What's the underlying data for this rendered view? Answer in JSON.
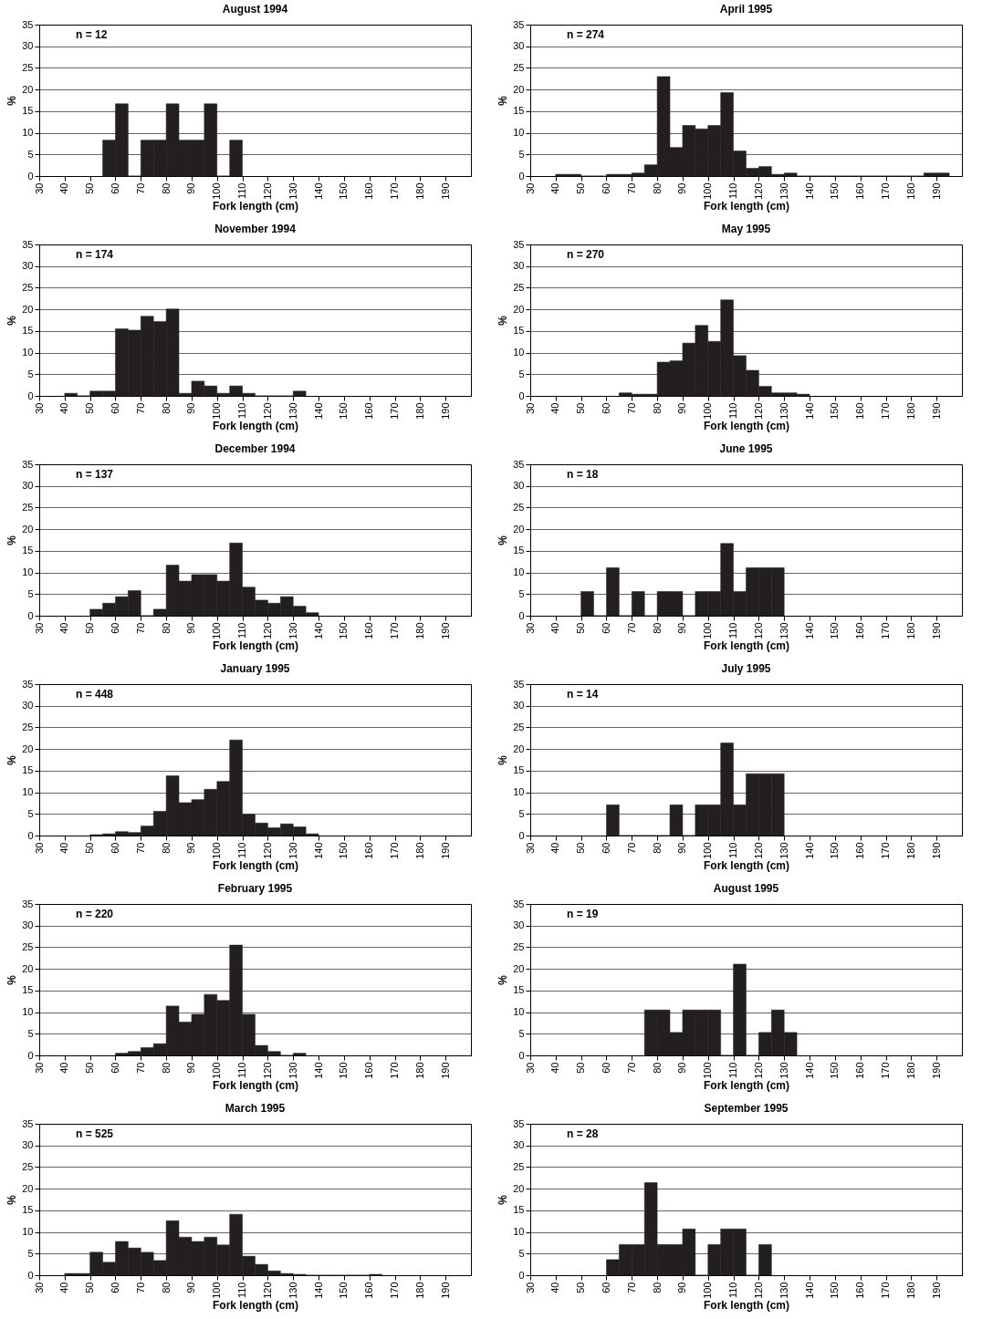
{
  "chart_data": [
    {
      "type": "histogram",
      "title": "August 1994",
      "xlabel": "Fork length (cm)",
      "ylabel": "%",
      "annotations": [
        "n = 12"
      ],
      "color": "#231f20",
      "grid": "y",
      "xlim": [
        30,
        200
      ],
      "xticks": [
        30,
        40,
        50,
        60,
        70,
        80,
        90,
        100,
        110,
        120,
        130,
        140,
        150,
        160,
        170,
        180,
        190
      ],
      "ylim": [
        0,
        35
      ],
      "yticks": [
        0,
        5,
        10,
        15,
        20,
        25,
        30,
        35
      ],
      "bins": [
        55,
        60,
        65,
        70,
        75,
        80,
        85,
        90,
        95,
        100,
        105,
        110
      ],
      "values": [
        8.3,
        16.7,
        0,
        8.3,
        8.3,
        16.7,
        8.3,
        8.3,
        16.7,
        0,
        8.3
      ]
    },
    {
      "type": "histogram",
      "title": "April 1995",
      "xlabel": "Fork length (cm)",
      "ylabel": "%",
      "annotations": [
        "n = 274"
      ],
      "color": "#231f20",
      "grid": "y",
      "xlim": [
        30,
        200
      ],
      "xticks": [
        30,
        40,
        50,
        60,
        70,
        80,
        90,
        100,
        110,
        120,
        130,
        140,
        150,
        160,
        170,
        180,
        190
      ],
      "ylim": [
        0,
        35
      ],
      "yticks": [
        0,
        5,
        10,
        15,
        20,
        25,
        30,
        35
      ],
      "bins": [
        40,
        45,
        50,
        55,
        60,
        65,
        70,
        75,
        80,
        85,
        90,
        95,
        100,
        105,
        110,
        115,
        120,
        125,
        130,
        135,
        140,
        145,
        150,
        155,
        160,
        165,
        170,
        175,
        180,
        185,
        190,
        195
      ],
      "values": [
        0.4,
        0.4,
        0,
        0,
        0.4,
        0.4,
        0.7,
        2.6,
        23.0,
        6.6,
        11.7,
        10.9,
        11.7,
        19.3,
        5.8,
        1.8,
        2.2,
        0.4,
        0.7,
        0,
        0,
        0,
        0,
        0,
        0,
        0,
        0,
        0,
        0,
        0.7,
        0.7
      ]
    },
    {
      "type": "histogram",
      "title": "November 1994",
      "xlabel": "Fork length (cm)",
      "ylabel": "%",
      "annotations": [
        "n = 174"
      ],
      "color": "#231f20",
      "grid": "y",
      "xlim": [
        30,
        200
      ],
      "xticks": [
        30,
        40,
        50,
        60,
        70,
        80,
        90,
        100,
        110,
        120,
        130,
        140,
        150,
        160,
        170,
        180,
        190
      ],
      "ylim": [
        0,
        35
      ],
      "yticks": [
        0,
        5,
        10,
        15,
        20,
        25,
        30,
        35
      ],
      "bins": [
        40,
        45,
        50,
        55,
        60,
        65,
        70,
        75,
        80,
        85,
        90,
        95,
        100,
        105,
        110,
        115,
        120,
        125,
        130,
        135
      ],
      "values": [
        0.6,
        0,
        1.1,
        1.1,
        15.5,
        15.2,
        18.4,
        17.2,
        20.1,
        0.6,
        3.4,
        2.3,
        0.6,
        2.3,
        0.6,
        0,
        0,
        0,
        1.1
      ]
    },
    {
      "type": "histogram",
      "title": "May 1995",
      "xlabel": "Fork length (cm)",
      "ylabel": "%",
      "annotations": [
        "n = 270"
      ],
      "color": "#231f20",
      "grid": "y",
      "xlim": [
        30,
        200
      ],
      "xticks": [
        30,
        40,
        50,
        60,
        70,
        80,
        90,
        100,
        110,
        120,
        130,
        140,
        150,
        160,
        170,
        180,
        190
      ],
      "ylim": [
        0,
        35
      ],
      "yticks": [
        0,
        5,
        10,
        15,
        20,
        25,
        30,
        35
      ],
      "bins": [
        65,
        70,
        75,
        80,
        85,
        90,
        95,
        100,
        105,
        110,
        115,
        120,
        125,
        130,
        135,
        140
      ],
      "values": [
        0.7,
        0.4,
        0.4,
        7.8,
        8.1,
        12.2,
        16.3,
        12.6,
        22.2,
        9.3,
        5.9,
        2.2,
        0.7,
        0.7,
        0.4
      ]
    },
    {
      "type": "histogram",
      "title": "December 1994",
      "xlabel": "Fork length (cm)",
      "ylabel": "%",
      "annotations": [
        "n = 137"
      ],
      "color": "#231f20",
      "grid": "y",
      "xlim": [
        30,
        200
      ],
      "xticks": [
        30,
        40,
        50,
        60,
        70,
        80,
        90,
        100,
        110,
        120,
        130,
        140,
        150,
        160,
        170,
        180,
        190
      ],
      "ylim": [
        0,
        35
      ],
      "yticks": [
        0,
        5,
        10,
        15,
        20,
        25,
        30,
        35
      ],
      "bins": [
        50,
        55,
        60,
        65,
        70,
        75,
        80,
        85,
        90,
        95,
        100,
        105,
        110,
        115,
        120,
        125,
        130,
        135,
        140
      ],
      "values": [
        1.5,
        2.9,
        4.4,
        5.8,
        0,
        1.5,
        11.7,
        8.0,
        9.5,
        9.5,
        8.0,
        16.8,
        6.6,
        3.6,
        2.9,
        4.4,
        2.2,
        0.7
      ]
    },
    {
      "type": "histogram",
      "title": "June 1995",
      "xlabel": "Fork length (cm)",
      "ylabel": "%",
      "annotations": [
        "n = 18"
      ],
      "color": "#231f20",
      "grid": "y",
      "xlim": [
        30,
        200
      ],
      "xticks": [
        30,
        40,
        50,
        60,
        70,
        80,
        90,
        100,
        110,
        120,
        130,
        140,
        150,
        160,
        170,
        180,
        190
      ],
      "ylim": [
        0,
        35
      ],
      "yticks": [
        0,
        5,
        10,
        15,
        20,
        25,
        30,
        35
      ],
      "bins": [
        50,
        55,
        60,
        65,
        70,
        75,
        80,
        85,
        90,
        95,
        100,
        105,
        110,
        115,
        120,
        125,
        130
      ],
      "values": [
        5.6,
        0,
        11.1,
        0,
        5.6,
        0,
        5.6,
        5.6,
        0,
        5.6,
        5.6,
        16.7,
        5.6,
        11.1,
        11.1,
        11.1
      ]
    },
    {
      "type": "histogram",
      "title": "January 1995",
      "xlabel": "Fork length (cm)",
      "ylabel": "%",
      "annotations": [
        "n = 448"
      ],
      "color": "#231f20",
      "grid": "y",
      "xlim": [
        30,
        200
      ],
      "xticks": [
        30,
        40,
        50,
        60,
        70,
        80,
        90,
        100,
        110,
        120,
        130,
        140,
        150,
        160,
        170,
        180,
        190
      ],
      "ylim": [
        0,
        35
      ],
      "yticks": [
        0,
        5,
        10,
        15,
        20,
        25,
        30,
        35
      ],
      "bins": [
        50,
        55,
        60,
        65,
        70,
        75,
        80,
        85,
        90,
        95,
        100,
        105,
        110,
        115,
        120,
        125,
        130,
        135,
        140
      ],
      "values": [
        0.2,
        0.4,
        0.9,
        0.7,
        2.2,
        5.6,
        13.8,
        7.6,
        8.3,
        10.7,
        12.5,
        22.1,
        4.9,
        2.9,
        1.8,
        2.7,
        2.0,
        0.4
      ]
    },
    {
      "type": "histogram",
      "title": "July 1995",
      "xlabel": "Fork length (cm)",
      "ylabel": "%",
      "annotations": [
        "n = 14"
      ],
      "color": "#231f20",
      "grid": "y",
      "xlim": [
        30,
        200
      ],
      "xticks": [
        30,
        40,
        50,
        60,
        70,
        80,
        90,
        100,
        110,
        120,
        130,
        140,
        150,
        160,
        170,
        180,
        190
      ],
      "ylim": [
        0,
        35
      ],
      "yticks": [
        0,
        5,
        10,
        15,
        20,
        25,
        30,
        35
      ],
      "bins": [
        60,
        65,
        70,
        75,
        80,
        85,
        90,
        95,
        100,
        105,
        110,
        115,
        120,
        125,
        130
      ],
      "values": [
        7.1,
        0,
        0,
        0,
        0,
        7.1,
        0,
        7.1,
        7.1,
        21.4,
        7.1,
        14.3,
        14.3,
        14.3
      ]
    },
    {
      "type": "histogram",
      "title": "February 1995",
      "xlabel": "Fork length (cm)",
      "ylabel": "%",
      "annotations": [
        "n = 220"
      ],
      "color": "#231f20",
      "grid": "y",
      "xlim": [
        30,
        200
      ],
      "xticks": [
        30,
        40,
        50,
        60,
        70,
        80,
        90,
        100,
        110,
        120,
        130,
        140,
        150,
        160,
        170,
        180,
        190
      ],
      "ylim": [
        0,
        35
      ],
      "yticks": [
        0,
        5,
        10,
        15,
        20,
        25,
        30,
        35
      ],
      "bins": [
        60,
        65,
        70,
        75,
        80,
        85,
        90,
        95,
        100,
        105,
        110,
        115,
        120,
        125,
        130,
        135
      ],
      "values": [
        0.5,
        0.9,
        1.8,
        2.7,
        11.4,
        7.7,
        9.5,
        14.1,
        12.7,
        25.5,
        9.5,
        2.3,
        0.9,
        0,
        0.5
      ]
    },
    {
      "type": "histogram",
      "title": "August 1995",
      "xlabel": "Fork length (cm)",
      "ylabel": "%",
      "annotations": [
        "n = 19"
      ],
      "color": "#231f20",
      "grid": "y",
      "xlim": [
        30,
        200
      ],
      "xticks": [
        30,
        40,
        50,
        60,
        70,
        80,
        90,
        100,
        110,
        120,
        130,
        140,
        150,
        160,
        170,
        180,
        190
      ],
      "ylim": [
        0,
        35
      ],
      "yticks": [
        0,
        5,
        10,
        15,
        20,
        25,
        30,
        35
      ],
      "bins": [
        75,
        80,
        85,
        90,
        95,
        100,
        105,
        110,
        115,
        120,
        125,
        130,
        135
      ],
      "values": [
        10.5,
        10.5,
        5.3,
        10.5,
        10.5,
        10.5,
        0,
        21.1,
        0,
        5.3,
        10.5,
        5.3
      ]
    },
    {
      "type": "histogram",
      "title": "March 1995",
      "xlabel": "Fork length (cm)",
      "ylabel": "%",
      "annotations": [
        "n = 525"
      ],
      "color": "#231f20",
      "grid": "y",
      "xlim": [
        30,
        200
      ],
      "xticks": [
        30,
        40,
        50,
        60,
        70,
        80,
        90,
        100,
        110,
        120,
        130,
        140,
        150,
        160,
        170,
        180,
        190
      ],
      "ylim": [
        0,
        35
      ],
      "yticks": [
        0,
        5,
        10,
        15,
        20,
        25,
        30,
        35
      ],
      "bins": [
        40,
        45,
        50,
        55,
        60,
        65,
        70,
        75,
        80,
        85,
        90,
        95,
        100,
        105,
        110,
        115,
        120,
        125,
        130,
        135,
        140,
        145,
        150,
        155,
        160,
        165
      ],
      "values": [
        0.4,
        0.4,
        5.3,
        3.0,
        7.8,
        6.3,
        5.3,
        3.4,
        12.6,
        8.8,
        7.8,
        8.8,
        7.0,
        14.1,
        4.4,
        2.5,
        1.0,
        0.4,
        0.2,
        0,
        0,
        0,
        0,
        0,
        0.2
      ]
    },
    {
      "type": "histogram",
      "title": "September 1995",
      "xlabel": "Fork length (cm)",
      "ylabel": "%",
      "annotations": [
        "n = 28"
      ],
      "color": "#231f20",
      "grid": "y",
      "xlim": [
        30,
        200
      ],
      "xticks": [
        30,
        40,
        50,
        60,
        70,
        80,
        90,
        100,
        110,
        120,
        130,
        140,
        150,
        160,
        170,
        180,
        190
      ],
      "ylim": [
        0,
        35
      ],
      "yticks": [
        0,
        5,
        10,
        15,
        20,
        25,
        30,
        35
      ],
      "bins": [
        60,
        65,
        70,
        75,
        80,
        85,
        90,
        95,
        100,
        105,
        110,
        115,
        120,
        125
      ],
      "values": [
        3.6,
        7.1,
        7.1,
        21.4,
        7.1,
        7.1,
        10.7,
        0,
        7.1,
        10.7,
        10.7,
        0,
        7.1
      ]
    }
  ]
}
